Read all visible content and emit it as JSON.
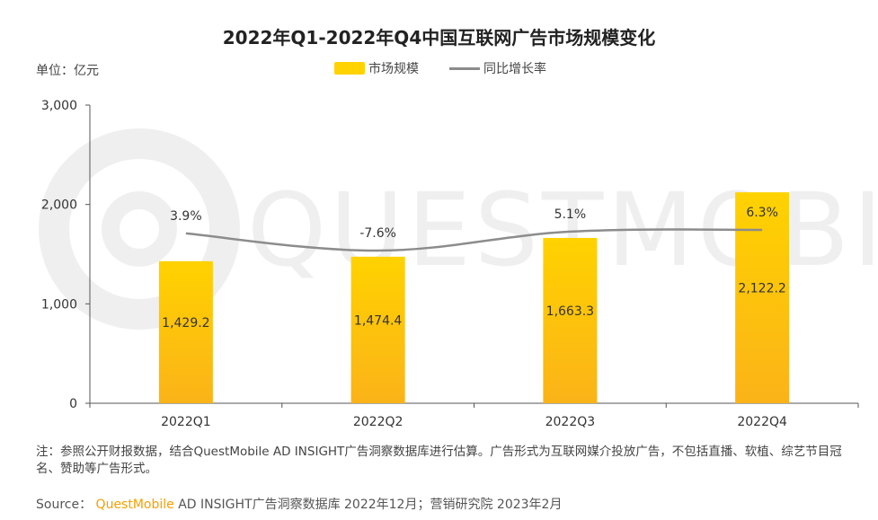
{
  "colors": {
    "bar_top": "#ffd200",
    "bar_bottom": "#fbb318",
    "line": "#8c8c8c",
    "brand": "#f5a000"
  },
  "watermark": "QUESTMOBILE",
  "unit_label": "单位：亿元",
  "chart_data": {
    "type": "bar",
    "title": "2022年Q1-2022年Q4中国互联网广告市场规模变化",
    "categories": [
      "2022Q1",
      "2022Q2",
      "2022Q3",
      "2022Q4"
    ],
    "series": [
      {
        "name": "市场规模",
        "kind": "bar",
        "values": [
          1429.2,
          1474.4,
          1663.3,
          2122.2
        ],
        "labels": [
          "1,429.2",
          "1,474.4",
          "1,663.3",
          "2,122.2"
        ]
      },
      {
        "name": "同比增长率",
        "kind": "line",
        "values": [
          3.9,
          -7.6,
          5.1,
          6.3
        ],
        "labels": [
          "3.9%",
          "-7.6%",
          "5.1%",
          "6.3%"
        ]
      }
    ],
    "ylim": [
      0,
      3000
    ],
    "yticks": [
      0,
      1000,
      2000,
      3000
    ],
    "ytick_labels": [
      "0",
      "1,000",
      "2,000",
      "3,000"
    ],
    "legend_position": "top-center",
    "grid": false
  },
  "note": "注：参照公开财报数据，结合QuestMobile AD INSIGHT广告洞察数据库进行估算。广告形式为互联网媒介投放广告，不包括直播、软植、综艺节目冠名、赞助等广告形式。",
  "source": {
    "prefix": "Source：",
    "brand": "QuestMobile",
    "rest": "AD INSIGHT广告洞察数据库 2022年12月；营销研究院 2023年2月"
  }
}
